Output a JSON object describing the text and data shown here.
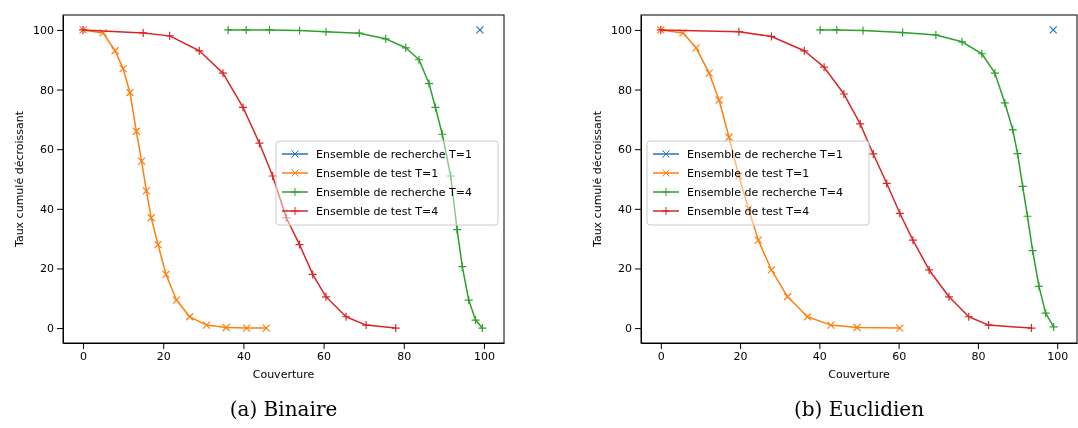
{
  "chart_data": [
    {
      "type": "line",
      "title": "(a) Binaire",
      "xlabel": "Couverture",
      "ylabel": "Taux cumulé décroissant",
      "xlim": [
        -5,
        105
      ],
      "ylim": [
        -5,
        105
      ],
      "xticks": [
        0,
        20,
        40,
        60,
        80,
        100
      ],
      "yticks": [
        0,
        20,
        40,
        60,
        80,
        100
      ],
      "legend": "right",
      "grid": false,
      "series": [
        {
          "name": "Ensemble de recherche T=1",
          "color": "#1f77b4",
          "marker": "cross",
          "x": [
            99
          ],
          "values": [
            100
          ]
        },
        {
          "name": "Ensemble de test T=1",
          "color": "#ff7f0e",
          "marker": "cross",
          "x": [
            0,
            5,
            8,
            10,
            11.7,
            13.3,
            14.6,
            15.8,
            17,
            18.7,
            20.7,
            23.3,
            26.6,
            30.8,
            35.7,
            40.8,
            45.7
          ],
          "values": [
            100,
            99,
            93,
            87,
            79,
            66,
            56,
            46,
            37,
            28,
            18,
            9.4,
            3.8,
            1,
            0.2,
            0,
            0
          ]
        },
        {
          "name": "Ensemble de recherche T=4",
          "color": "#2ca02c",
          "marker": "plus",
          "x": [
            36.2,
            40.7,
            46.5,
            54,
            60.6,
            68.9,
            75.5,
            80.5,
            83.8,
            86.3,
            87.9,
            89.6,
            91.7,
            93.3,
            94.6,
            96.2,
            97.9,
            99.6
          ],
          "values": [
            100,
            100,
            100,
            99.8,
            99.4,
            98.9,
            97,
            94,
            90,
            82,
            74,
            65,
            51,
            33,
            20.6,
            9.4,
            2.7,
            0
          ]
        },
        {
          "name": "Ensemble de test T=4",
          "color": "#d62728",
          "marker": "plus",
          "x": [
            0,
            15,
            21.6,
            29,
            34.9,
            39.9,
            44,
            47.3,
            50.7,
            54,
            57.3,
            60.6,
            65.6,
            70.6,
            78
          ],
          "values": [
            100,
            99,
            98,
            93,
            85.5,
            74,
            62,
            51,
            37,
            28,
            18,
            10.5,
            3.8,
            1,
            0
          ]
        }
      ]
    },
    {
      "type": "line",
      "title": "(b) Euclidien",
      "xlabel": "Couverture",
      "ylabel": "Taux cumulé décroissant",
      "xlim": [
        -5,
        105
      ],
      "ylim": [
        -5,
        105
      ],
      "xticks": [
        0,
        20,
        40,
        60,
        80,
        100
      ],
      "yticks": [
        0,
        20,
        40,
        60,
        80,
        100
      ],
      "legend": "left",
      "grid": false,
      "series": [
        {
          "name": "Ensemble de recherche T=1",
          "color": "#1f77b4",
          "marker": "cross",
          "x": [
            99
          ],
          "values": [
            100
          ]
        },
        {
          "name": "Ensemble de test T=1",
          "color": "#ff7f0e",
          "marker": "cross",
          "x": [
            0,
            5.6,
            8.9,
            12.2,
            14.7,
            17.2,
            19.7,
            22.1,
            24.6,
            27.9,
            32,
            37,
            42.9,
            49.5,
            60.3
          ],
          "values": [
            100,
            99,
            94,
            85.5,
            76.5,
            64,
            51,
            40,
            29.5,
            19.5,
            10.5,
            3.8,
            1,
            0.2,
            0
          ]
        },
        {
          "name": "Ensemble de recherche T=4",
          "color": "#2ca02c",
          "marker": "plus",
          "x": [
            40.2,
            44.4,
            51,
            61,
            69.4,
            76,
            81,
            84.3,
            86.8,
            88.8,
            90,
            91.3,
            92.5,
            93.8,
            95.4,
            97.1,
            99.1
          ],
          "values": [
            100,
            100,
            99.8,
            99.1,
            98.3,
            96,
            92,
            85.5,
            75.5,
            66.5,
            58.5,
            47.5,
            37.5,
            26,
            14,
            5,
            0.4
          ]
        },
        {
          "name": "Ensemble de test T=4",
          "color": "#d62728",
          "marker": "plus",
          "x": [
            0,
            19.7,
            27.9,
            36.2,
            41.2,
            46.2,
            50.3,
            53.6,
            57,
            60.3,
            63.6,
            67.7,
            72.7,
            77.7,
            82.7,
            93.5
          ],
          "values": [
            100,
            99.4,
            97.8,
            93,
            87.5,
            78.5,
            68.5,
            58.4,
            48.5,
            38.5,
            29.5,
            19.5,
            10.5,
            3.8,
            1,
            0
          ]
        }
      ]
    }
  ]
}
